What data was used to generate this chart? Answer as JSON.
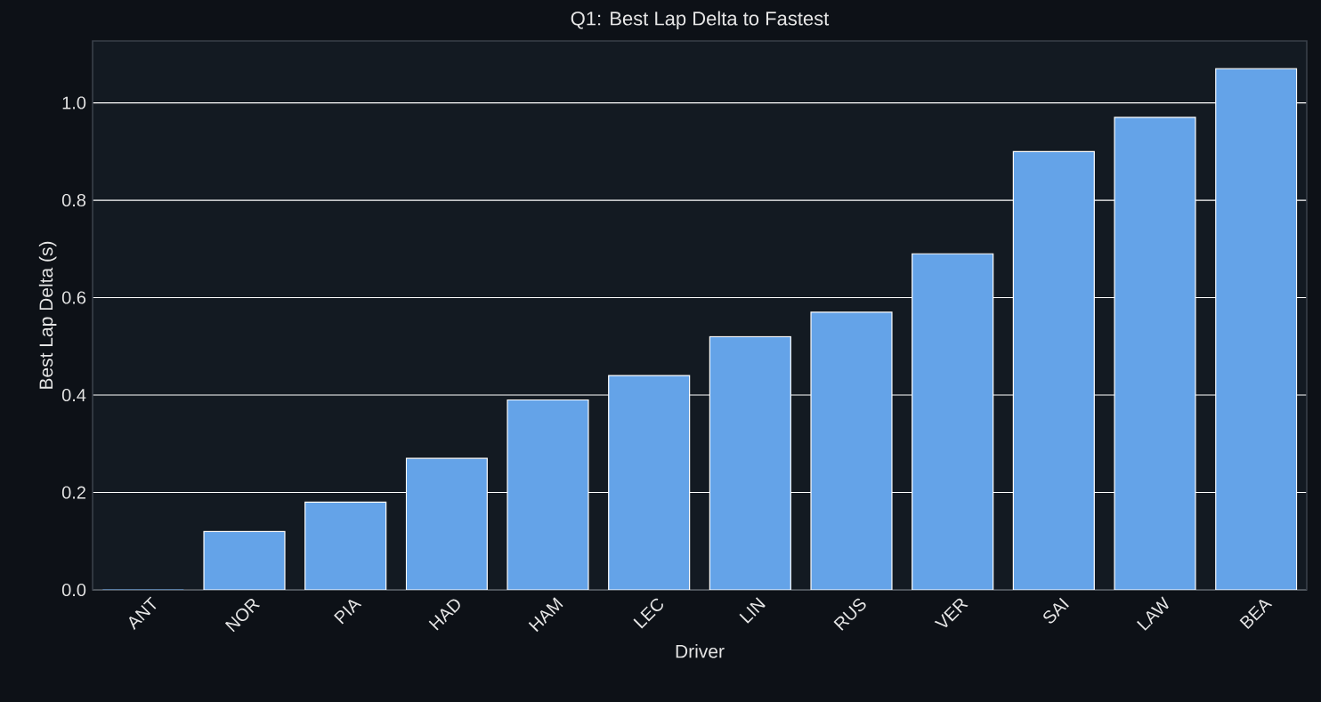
{
  "chart_data": {
    "type": "bar",
    "title": "Q1: Best Lap Delta to Fastest",
    "xlabel": "Driver",
    "ylabel": "Best Lap Delta (s)",
    "categories": [
      "ANT",
      "NOR",
      "PIA",
      "HAD",
      "HAM",
      "LEC",
      "LIN",
      "RUS",
      "VER",
      "SAI",
      "LAW",
      "BEA"
    ],
    "values": [
      0,
      0.12,
      0.18,
      0.27,
      0.39,
      0.44,
      0.52,
      0.57,
      0.69,
      0.9,
      0.97,
      1.07
    ],
    "color": "#64a3e8",
    "ylim": [
      0,
      1.127
    ],
    "yticks": [
      {
        "value": 0,
        "label": "0.0"
      },
      {
        "value": 0.2,
        "label": "0.2"
      },
      {
        "value": 0.4,
        "label": "0.4"
      },
      {
        "value": 0.6,
        "label": "0.6"
      },
      {
        "value": 0.8,
        "label": "0.8"
      },
      {
        "value": 1.0,
        "label": "1.0"
      }
    ],
    "grid": "y"
  }
}
